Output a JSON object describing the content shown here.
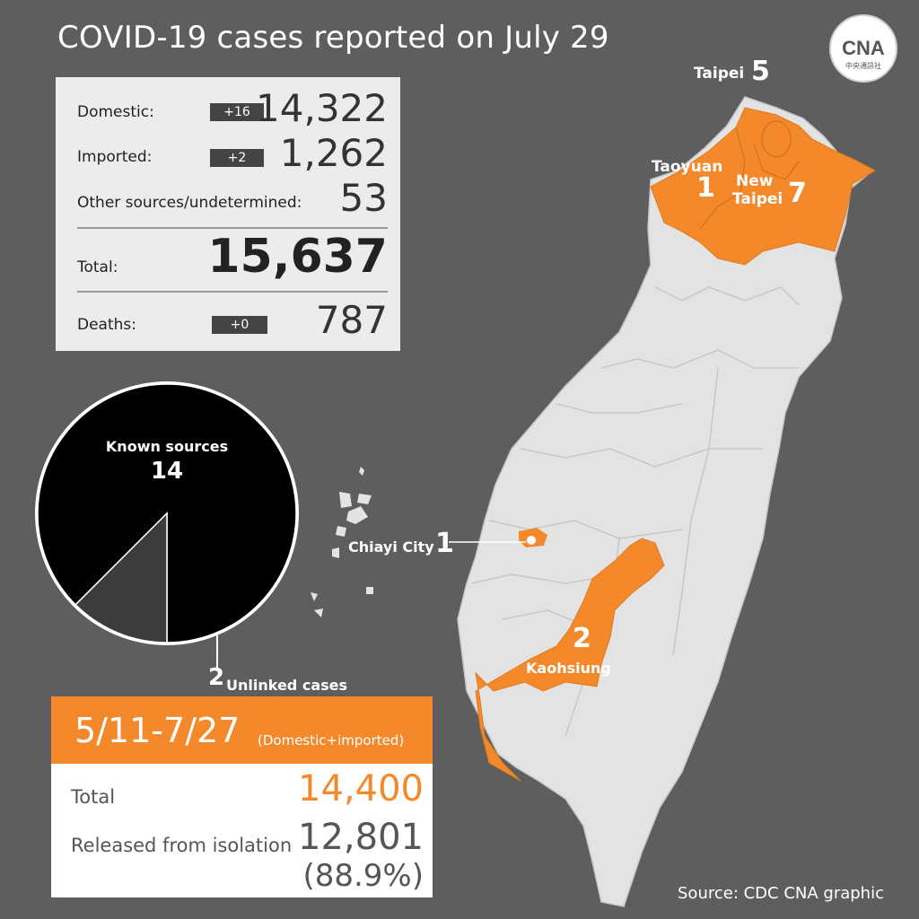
{
  "title": "COVID-19 cases reported on July 29",
  "logo": {
    "text": "CNA",
    "subtext": "中央通訊社"
  },
  "stats": {
    "domestic": {
      "label": "Domestic:",
      "change": "+16",
      "value": "14,322"
    },
    "imported": {
      "label": "Imported:",
      "change": "+2",
      "value": "1,262"
    },
    "other": {
      "label": "Other sources/undetermined:",
      "value": "53"
    },
    "total": {
      "label": "Total:",
      "value": "15,637"
    },
    "deaths": {
      "label": "Deaths:",
      "change": "+0",
      "value": "787"
    }
  },
  "chart_data": [
    {
      "type": "pie",
      "slices": [
        {
          "label": "Known sources",
          "value": 14,
          "color": "#000000"
        },
        {
          "label": "Unlinked cases",
          "value": 2,
          "color": "#3c3c3c"
        }
      ]
    },
    {
      "type": "table",
      "regions": [
        {
          "name": "Taipei",
          "cases": 5
        },
        {
          "name": "Taoyuan",
          "cases": 1
        },
        {
          "name": "New Taipei",
          "cases": 7
        },
        {
          "name": "Chiayi City",
          "cases": 1
        },
        {
          "name": "Kaohsiung",
          "cases": 2
        }
      ]
    }
  ],
  "pie_labels": {
    "known_label": "Known sources",
    "known_value": "14",
    "unlinked_label": "Unlinked cases",
    "unlinked_value": "2"
  },
  "period": {
    "range": "5/11-7/27",
    "note": "(Domestic+imported)",
    "total_label": "Total",
    "total_value": "14,400",
    "released_label": "Released from isolation",
    "released_value": "12,801",
    "released_pct": "(88.9%)"
  },
  "map_labels": {
    "taipei": {
      "name": "Taipei",
      "cases": "5"
    },
    "taoyuan": {
      "name": "Taoyuan",
      "cases": "1"
    },
    "new_taipei": {
      "name1": "New",
      "name2": "Taipei",
      "cases": "7"
    },
    "chiayi": {
      "name": "Chiayi City",
      "cases": "1"
    },
    "kaohsiung": {
      "name": "Kaohsiung",
      "cases": "2"
    }
  },
  "colors": {
    "background": "#5e5e5e",
    "highlight": "#f4892b",
    "land": "#e6e6e6",
    "panel": "#ececec"
  },
  "source": "Source: CDC  CNA graphic"
}
